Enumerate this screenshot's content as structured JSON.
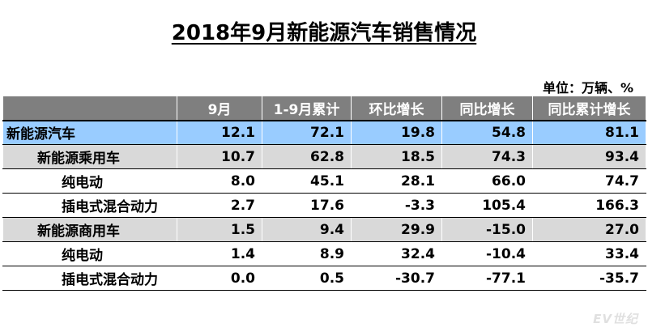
{
  "title": "2018年9月新能源汽车销售情况",
  "unit": "单位：万辆、%",
  "table": {
    "headers": [
      "",
      "9月",
      "1-9月累计",
      "环比增长",
      "同比增长",
      "同比累计增长"
    ],
    "rows": [
      {
        "label": "新能源汽车",
        "level": 0,
        "values": [
          "12.1",
          "72.1",
          "19.8",
          "54.8",
          "81.1"
        ]
      },
      {
        "label": "新能源乘用车",
        "level": 1,
        "values": [
          "10.7",
          "62.8",
          "18.5",
          "74.3",
          "93.4"
        ]
      },
      {
        "label": "纯电动",
        "level": 2,
        "values": [
          "8.0",
          "45.1",
          "28.1",
          "66.0",
          "74.7"
        ]
      },
      {
        "label": "插电式混合动力",
        "level": 2,
        "values": [
          "2.7",
          "17.6",
          "-3.3",
          "105.4",
          "166.3"
        ]
      },
      {
        "label": "新能源商用车",
        "level": 1,
        "values": [
          "1.5",
          "9.4",
          "29.9",
          "-15.0",
          "27.0"
        ]
      },
      {
        "label": "纯电动",
        "level": 2,
        "values": [
          "1.4",
          "8.9",
          "32.4",
          "-10.4",
          "33.4"
        ]
      },
      {
        "label": "插电式混合动力",
        "level": 2,
        "values": [
          "0.0",
          "0.5",
          "-30.7",
          "-77.1",
          "-35.7"
        ]
      }
    ]
  },
  "watermark": "EV世纪",
  "colors": {
    "header_bg": "#7f7f7f",
    "total_row_bg": "#99ccff",
    "category_row_bg": "#d9d9d9",
    "sub_row_bg": "#ffffff"
  }
}
